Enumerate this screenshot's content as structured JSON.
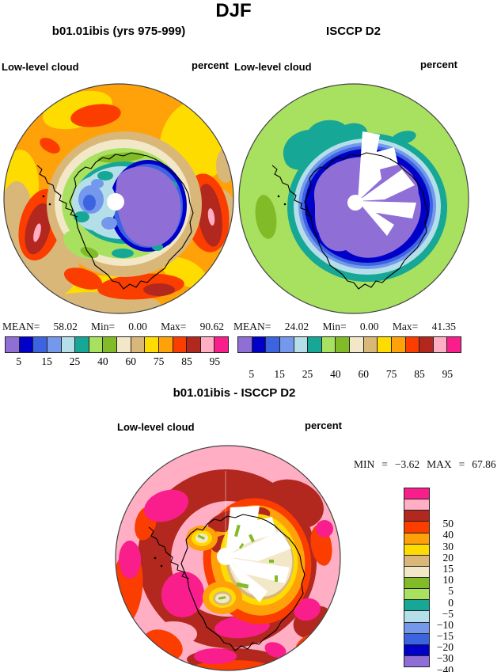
{
  "page_title": "DJF",
  "palette": [
    "#8f6ed6",
    "#0000c8",
    "#3c64e1",
    "#7398ec",
    "#b5dfe8",
    "#16a796",
    "#a8e060",
    "#82bb28",
    "#f2e8c8",
    "#d9b778",
    "#ffdc00",
    "#ffa20a",
    "#fb3d00",
    "#b2281e",
    "#ffaec4",
    "#fa1e8c"
  ],
  "map_colors": {
    "coastline": "#000000",
    "missing_data": "#ffffff",
    "circle_outline": "#444444"
  },
  "panels": {
    "model": {
      "title": "b01.01ibis (yrs 975-999)",
      "field_label": "Low-level cloud",
      "units_label": "percent",
      "stats": {
        "mean_label": "MEAN=",
        "mean_value": "58.02",
        "min_label": "Min=",
        "min_value": "0.00",
        "max_label": "Max=",
        "max_value": "90.62"
      },
      "colorbar_ticks": [
        "5",
        "15",
        "25",
        "40",
        "60",
        "75",
        "85",
        "95"
      ]
    },
    "obs": {
      "title": "ISCCP D2",
      "field_label": "Low-level cloud",
      "units_label": "percent",
      "stats": {
        "mean_label": "MEAN=",
        "mean_value": "24.02",
        "min_label": "Min=",
        "min_value": "0.00",
        "max_label": "Max=",
        "max_value": "41.35"
      },
      "colorbar_ticks": [
        "5",
        "15",
        "25",
        "40",
        "60",
        "75",
        "85",
        "95"
      ]
    },
    "diff": {
      "title": "b01.01ibis - ISCCP D2",
      "field_label": "Low-level cloud",
      "units_label": "percent",
      "stats": {
        "min_label": "MIN",
        "eq1": "=",
        "min_value": "−3.62",
        "max_label": "MAX",
        "eq2": "=",
        "max_value": "67.86"
      },
      "colorbar_ticks": [
        "50",
        "40",
        "30",
        "20",
        "15",
        "10",
        "5",
        "0",
        "−5",
        "−10",
        "−15",
        "−20",
        "−30",
        "−40",
        "−50"
      ]
    }
  },
  "chart_data": [
    {
      "type": "heatmap",
      "subtype": "polar_stereographic_contour_map",
      "region": "Southern Hemisphere / Antarctica",
      "season": "DJF",
      "title": "b01.01ibis (yrs 975-999)",
      "variable": "Low-level cloud",
      "units": "percent",
      "stats": {
        "mean": 58.02,
        "min": 0.0,
        "max": 90.62
      },
      "contour_levels": [
        5,
        10,
        15,
        20,
        25,
        30,
        40,
        50,
        60,
        70,
        75,
        80,
        85,
        90,
        95
      ],
      "tick_labels": [
        5,
        15,
        25,
        40,
        60,
        75,
        85,
        95
      ],
      "palette_low_to_high": [
        "#8f6ed6",
        "#0000c8",
        "#3c64e1",
        "#7398ec",
        "#b5dfe8",
        "#16a796",
        "#a8e060",
        "#82bb28",
        "#f2e8c8",
        "#d9b778",
        "#ffdc00",
        "#ffa20a",
        "#fb3d00",
        "#b2281e",
        "#ffaec4",
        "#fa1e8c"
      ],
      "legend_position": "bottom"
    },
    {
      "type": "heatmap",
      "subtype": "polar_stereographic_contour_map",
      "region": "Southern Hemisphere / Antarctica",
      "season": "DJF",
      "title": "ISCCP D2",
      "variable": "Low-level cloud",
      "units": "percent",
      "stats": {
        "mean": 24.02,
        "min": 0.0,
        "max": 41.35
      },
      "contour_levels": [
        5,
        10,
        15,
        20,
        25,
        30,
        40,
        50,
        60,
        70,
        75,
        80,
        85,
        90,
        95
      ],
      "tick_labels": [
        5,
        15,
        25,
        40,
        60,
        75,
        85,
        95
      ],
      "palette_low_to_high": [
        "#8f6ed6",
        "#0000c8",
        "#3c64e1",
        "#7398ec",
        "#b5dfe8",
        "#16a796",
        "#a8e060",
        "#82bb28",
        "#f2e8c8",
        "#d9b778",
        "#ffdc00",
        "#ffa20a",
        "#fb3d00",
        "#b2281e",
        "#ffaec4",
        "#fa1e8c"
      ],
      "legend_position": "bottom",
      "notes": "White wedge sectors over Antarctica indicate missing data"
    },
    {
      "type": "heatmap",
      "subtype": "polar_stereographic_contour_map",
      "region": "Southern Hemisphere / Antarctica",
      "season": "DJF",
      "title": "b01.01ibis - ISCCP D2",
      "variable": "Low-level cloud difference",
      "units": "percent",
      "stats": {
        "min": -3.62,
        "max": 67.86
      },
      "contour_levels": [
        -50,
        -40,
        -30,
        -20,
        -15,
        -10,
        -5,
        0,
        5,
        10,
        15,
        20,
        30,
        40,
        50
      ],
      "tick_labels": [
        50,
        40,
        30,
        20,
        15,
        10,
        5,
        0,
        -5,
        -10,
        -15,
        -20,
        -30,
        -40,
        -50
      ],
      "palette_low_to_high": [
        "#8f6ed6",
        "#0000c8",
        "#3c64e1",
        "#7398ec",
        "#b5dfe8",
        "#16a796",
        "#a8e060",
        "#82bb28",
        "#f2e8c8",
        "#d9b778",
        "#ffdc00",
        "#ffa20a",
        "#fb3d00",
        "#b2281e",
        "#ffaec4",
        "#fa1e8c"
      ],
      "legend_position": "right"
    }
  ]
}
